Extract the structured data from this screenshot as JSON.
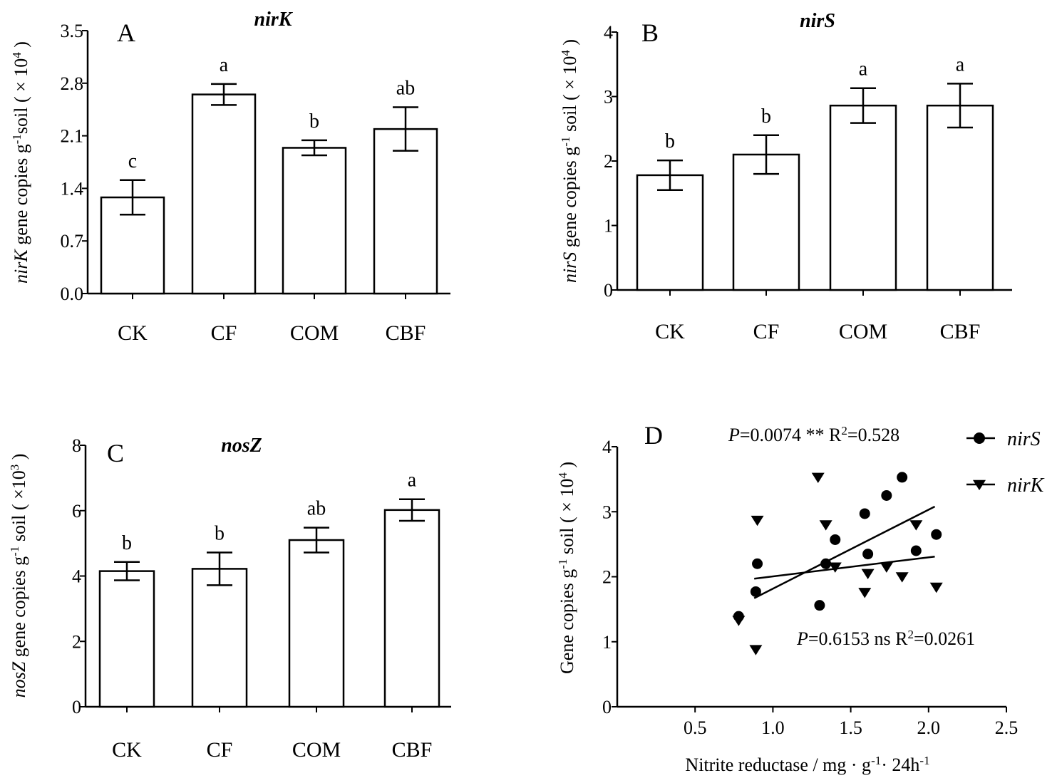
{
  "chart_data": [
    {
      "panel": "A",
      "type": "bar",
      "title": "nirK",
      "categories": [
        "CK",
        "CF",
        "COM",
        "CBF"
      ],
      "values": [
        1.28,
        2.65,
        1.94,
        2.19
      ],
      "errors": [
        0.23,
        0.14,
        0.1,
        0.29
      ],
      "sig_letters": [
        "c",
        "a",
        "b",
        "ab"
      ],
      "ylim": [
        0,
        3.5
      ],
      "yticks": [
        0.0,
        0.7,
        1.4,
        2.1,
        2.8,
        3.5
      ],
      "ytick_labels": [
        "0.0",
        "0.7",
        "1.4",
        "2.1",
        "2.8",
        "3.5"
      ],
      "ylabel": {
        "gene": "nirK",
        "text": " gene copies g",
        "sup": "-1",
        "unit": "soil ( × 10",
        "exp": "4",
        "close": " )"
      }
    },
    {
      "panel": "B",
      "type": "bar",
      "title": "nirS",
      "categories": [
        "CK",
        "CF",
        "COM",
        "CBF"
      ],
      "values": [
        1.78,
        2.1,
        2.86,
        2.86
      ],
      "errors": [
        0.23,
        0.3,
        0.27,
        0.34
      ],
      "sig_letters": [
        "b",
        "b",
        "a",
        "a"
      ],
      "ylim": [
        0,
        4
      ],
      "yticks": [
        0,
        1,
        2,
        3,
        4
      ],
      "ytick_labels": [
        "0",
        "1",
        "2",
        "3",
        "4"
      ],
      "ylabel": {
        "gene": "nirS",
        "text": " gene copies g",
        "sup": "-1",
        "unit": " soil ( × 10",
        "exp": "4",
        "close": " )"
      }
    },
    {
      "panel": "C",
      "type": "bar",
      "title": "nosZ",
      "categories": [
        "CK",
        "CF",
        "COM",
        "CBF"
      ],
      "values": [
        4.15,
        4.22,
        5.1,
        6.02
      ],
      "errors": [
        0.28,
        0.5,
        0.38,
        0.33
      ],
      "sig_letters": [
        "b",
        "b",
        "ab",
        "a"
      ],
      "ylim": [
        0,
        8
      ],
      "yticks": [
        0,
        2,
        4,
        6,
        8
      ],
      "ytick_labels": [
        "0",
        "2",
        "4",
        "6",
        "8"
      ],
      "ylabel": {
        "gene": "nosZ",
        "text": " gene copies g",
        "sup": "-1",
        "unit": " soil ( ×10",
        "exp": "3",
        "close": " )"
      }
    },
    {
      "panel": "D",
      "type": "scatter",
      "xlim": [
        0,
        2.5
      ],
      "ylim": [
        0,
        4
      ],
      "xticks": [
        0.5,
        1.0,
        1.5,
        2.0,
        2.5
      ],
      "xtick_labels": [
        "0.5",
        "1.0",
        "1.5",
        "2.0",
        "2.5"
      ],
      "yticks": [
        0,
        1,
        2,
        3,
        4
      ],
      "ytick_labels": [
        "0",
        "1",
        "2",
        "3",
        "4"
      ],
      "xlabel": {
        "text": "Nitrite reductase / mg · g",
        "sup": "-1",
        "rest": "· 24h",
        "sup2": "-1"
      },
      "ylabel": {
        "text": "Gene copies g",
        "sup": "-1",
        "unit": " soil ( × 10",
        "exp": "4",
        "close": " )"
      },
      "series": [
        {
          "name": "nirS",
          "marker": "circle",
          "points": [
            [
              0.78,
              1.39
            ],
            [
              0.9,
              2.2
            ],
            [
              0.89,
              1.77
            ],
            [
              1.3,
              1.56
            ],
            [
              1.34,
              2.2
            ],
            [
              1.4,
              2.57
            ],
            [
              1.59,
              2.97
            ],
            [
              1.61,
              2.35
            ],
            [
              1.73,
              3.25
            ],
            [
              1.83,
              3.53
            ],
            [
              1.92,
              2.4
            ],
            [
              2.05,
              2.65
            ]
          ],
          "fit": [
            [
              0.88,
              1.67
            ],
            [
              2.04,
              3.08
            ]
          ],
          "annotation": {
            "p": "P",
            "text": "=0.0074 **  R",
            "sup": "2",
            "rest": "=0.528"
          }
        },
        {
          "name": "nirK",
          "marker": "triangle-down",
          "points": [
            [
              0.78,
              1.33
            ],
            [
              0.89,
              0.88
            ],
            [
              0.9,
              2.87
            ],
            [
              1.29,
              3.53
            ],
            [
              1.34,
              2.8
            ],
            [
              1.4,
              2.15
            ],
            [
              1.59,
              1.76
            ],
            [
              1.61,
              2.05
            ],
            [
              1.73,
              2.15
            ],
            [
              1.83,
              2.0
            ],
            [
              1.92,
              2.8
            ],
            [
              2.05,
              1.84
            ]
          ],
          "fit": [
            [
              0.88,
              1.97
            ],
            [
              2.04,
              2.31
            ]
          ],
          "annotation": {
            "p": "P",
            "text": "=0.6153 ns  R",
            "sup": "2",
            "rest": "=0.0261"
          }
        }
      ]
    }
  ]
}
